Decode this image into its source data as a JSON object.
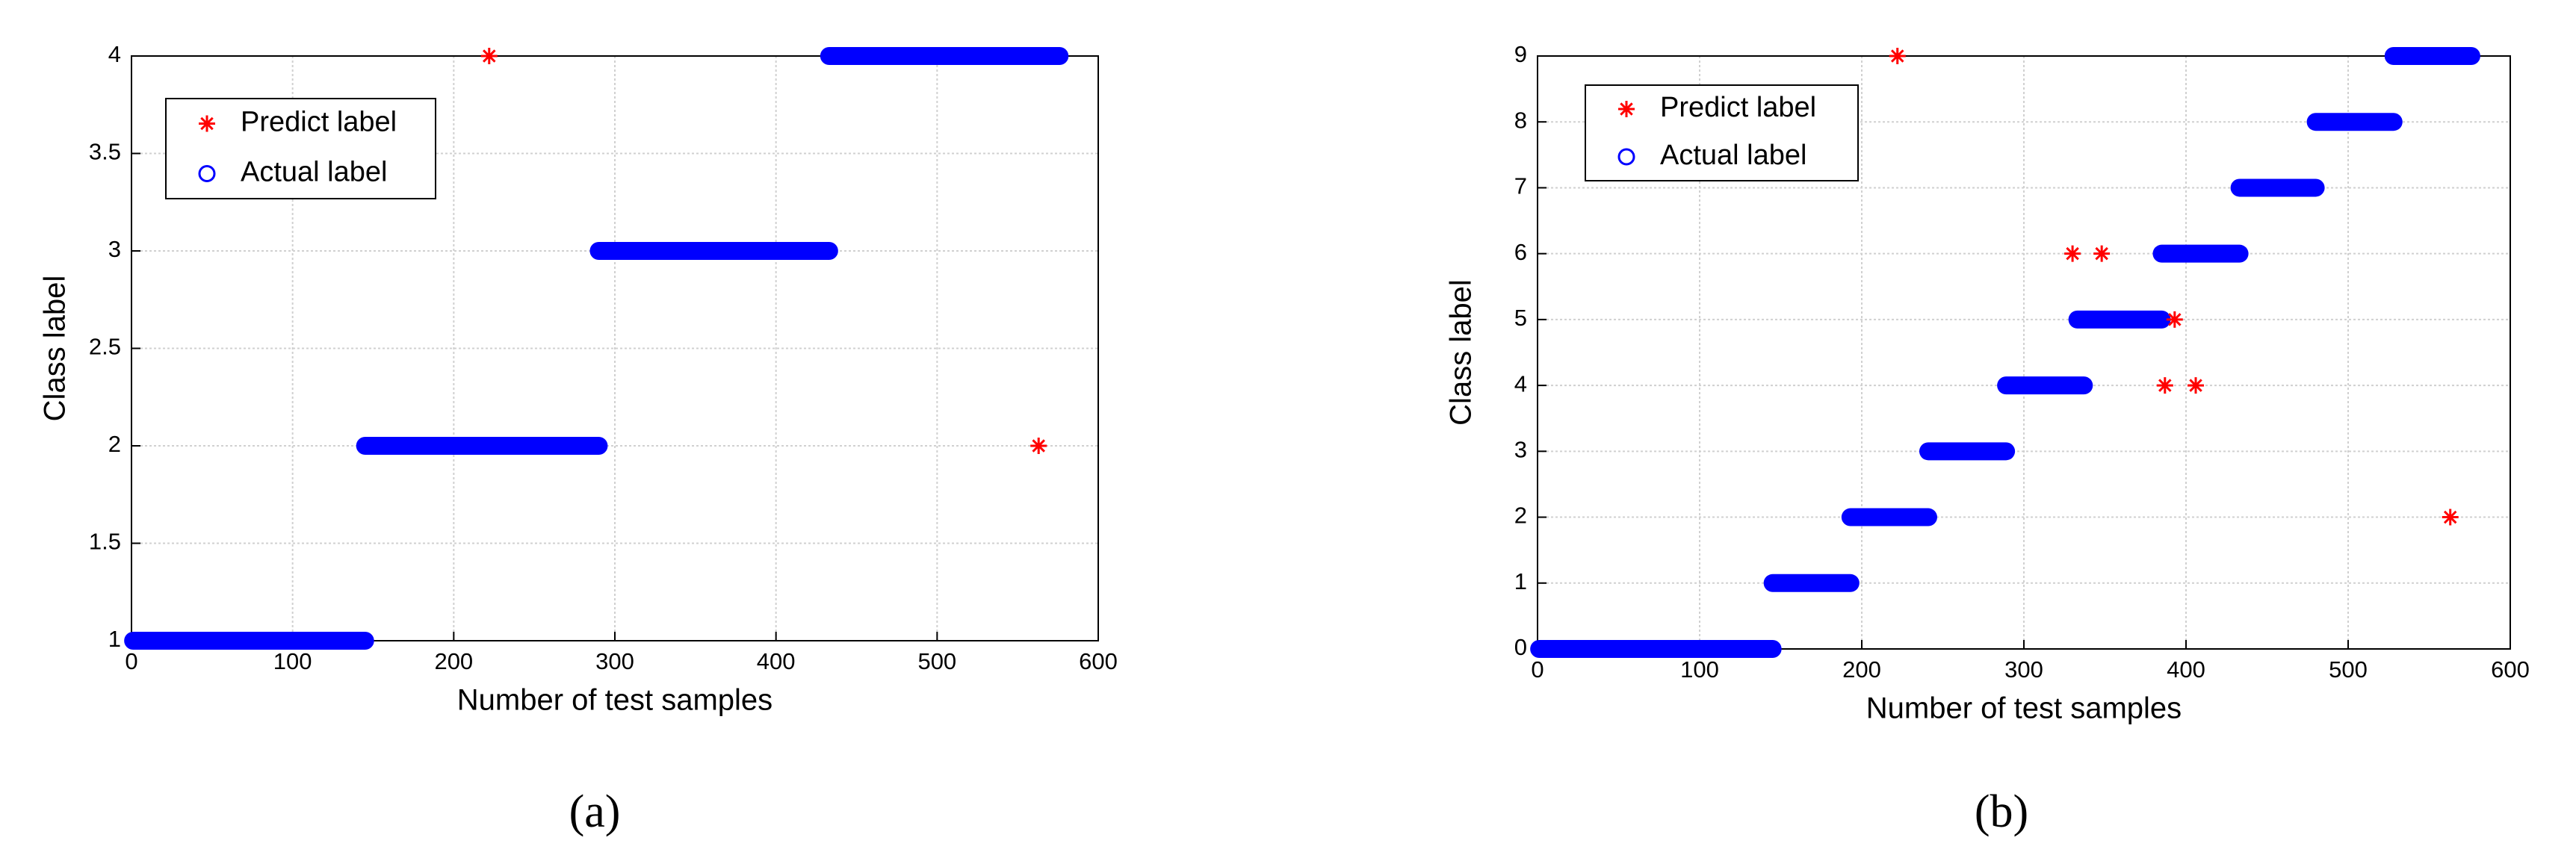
{
  "chart_data": [
    {
      "type": "scatter",
      "caption": "(a)",
      "xlabel": "Number of test samples",
      "ylabel": "Class label",
      "xlim": [
        0,
        600
      ],
      "xticks": [
        0,
        100,
        200,
        300,
        400,
        500,
        600
      ],
      "ylim": [
        1,
        4
      ],
      "yticks": [
        1,
        1.5,
        2,
        2.5,
        3,
        3.5,
        4
      ],
      "grid": true,
      "series": [
        {
          "name": "Predict label",
          "color": "#ff0000",
          "marker": "*",
          "x": [
            222,
            563
          ],
          "values": [
            4,
            2
          ]
        },
        {
          "name": "Actual label",
          "color": "#0000ff",
          "marker": "o",
          "x_start": [
            1,
            145,
            290,
            433
          ],
          "x_end": [
            145,
            290,
            433,
            576
          ],
          "values": [
            1,
            2,
            3,
            4
          ]
        }
      ]
    },
    {
      "type": "scatter",
      "caption": "(b)",
      "xlabel": "Number of test samples",
      "ylabel": "Class label",
      "xlim": [
        0,
        600
      ],
      "xticks": [
        0,
        100,
        200,
        300,
        400,
        500,
        600
      ],
      "ylim": [
        0,
        9
      ],
      "yticks": [
        0,
        1,
        2,
        3,
        4,
        5,
        6,
        7,
        8,
        9
      ],
      "grid": true,
      "series": [
        {
          "name": "Predict label",
          "color": "#ff0000",
          "marker": "*",
          "x": [
            222,
            330,
            348,
            393,
            387,
            406,
            563
          ],
          "values": [
            9,
            6,
            6,
            5,
            4,
            4,
            2
          ]
        },
        {
          "name": "Actual label",
          "color": "#0000ff",
          "marker": "o",
          "x_start": [
            1,
            145,
            193,
            241,
            289,
            333,
            385,
            433,
            480,
            528
          ],
          "x_end": [
            145,
            193,
            241,
            289,
            337,
            385,
            433,
            480,
            528,
            576
          ],
          "values": [
            0,
            1,
            2,
            3,
            4,
            5,
            6,
            7,
            8,
            9
          ]
        }
      ]
    }
  ]
}
